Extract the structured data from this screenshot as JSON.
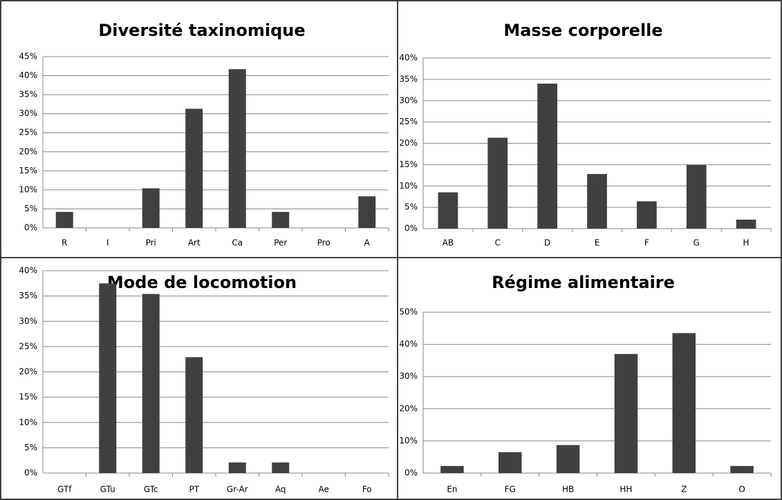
{
  "chart_data": [
    {
      "type": "bar",
      "title": "Diversité taxinomique",
      "color": "#404040",
      "grid": true,
      "categories": [
        "R",
        "I",
        "Pri",
        "Art",
        "Ca",
        "Per",
        "Pro",
        "A"
      ],
      "values": [
        4.2,
        0,
        10.4,
        31.3,
        41.7,
        4.2,
        0,
        8.3
      ],
      "ylim": [
        0,
        45
      ],
      "yticks": [
        {
          "value": 0,
          "label": "0%"
        },
        {
          "value": 5,
          "label": "5%"
        },
        {
          "value": 10,
          "label": "10%"
        },
        {
          "value": 15,
          "label": "15%"
        },
        {
          "value": 20,
          "label": "20%"
        },
        {
          "value": 25,
          "label": "25%"
        },
        {
          "value": 30,
          "label": "30%"
        },
        {
          "value": 35,
          "label": "35%"
        },
        {
          "value": 40,
          "label": "40%"
        },
        {
          "value": 45,
          "label": "45%"
        }
      ]
    },
    {
      "type": "bar",
      "title": "Masse corporelle",
      "color": "#404040",
      "grid": true,
      "categories": [
        "AB",
        "C",
        "D",
        "E",
        "F",
        "G",
        "H"
      ],
      "values": [
        8.5,
        21.3,
        34.0,
        12.8,
        6.4,
        14.9,
        2.1
      ],
      "ylim": [
        0,
        40
      ],
      "yticks": [
        {
          "value": 0,
          "label": "0%"
        },
        {
          "value": 5,
          "label": "5%"
        },
        {
          "value": 10,
          "label": "10%"
        },
        {
          "value": 15,
          "label": "15%"
        },
        {
          "value": 20,
          "label": "20%"
        },
        {
          "value": 25,
          "label": "25%"
        },
        {
          "value": 30,
          "label": "30%"
        },
        {
          "value": 35,
          "label": "35%"
        },
        {
          "value": 40,
          "label": "40%"
        }
      ]
    },
    {
      "type": "bar",
      "title": "Mode de locomotion",
      "color": "#404040",
      "grid": true,
      "categories": [
        "GTf",
        "GTu",
        "GTc",
        "PT",
        "Gr-Ar",
        "Aq",
        "Ae",
        "Fo"
      ],
      "values": [
        0,
        37.5,
        35.4,
        22.9,
        2.1,
        2.1,
        0,
        0
      ],
      "ylim": [
        0,
        40
      ],
      "yticks": [
        {
          "value": 0,
          "label": "0%"
        },
        {
          "value": 5,
          "label": "5%"
        },
        {
          "value": 10,
          "label": "10%"
        },
        {
          "value": 15,
          "label": "15%"
        },
        {
          "value": 20,
          "label": "20%"
        },
        {
          "value": 25,
          "label": "25%"
        },
        {
          "value": 30,
          "label": "30%"
        },
        {
          "value": 35,
          "label": "35%"
        },
        {
          "value": 40,
          "label": "40%"
        }
      ]
    },
    {
      "type": "bar",
      "title": "Régime alimentaire",
      "color": "#404040",
      "grid": true,
      "categories": [
        "En",
        "FG",
        "HB",
        "HH",
        "Z",
        "O"
      ],
      "values": [
        2.2,
        6.5,
        8.7,
        37.0,
        43.5,
        2.2
      ],
      "ylim": [
        0,
        50
      ],
      "yticks": [
        {
          "value": 0,
          "label": "0%"
        },
        {
          "value": 10,
          "label": "10%"
        },
        {
          "value": 20,
          "label": "20%"
        },
        {
          "value": 30,
          "label": "30%"
        },
        {
          "value": 40,
          "label": "40%"
        },
        {
          "value": 50,
          "label": "50%"
        }
      ]
    }
  ]
}
